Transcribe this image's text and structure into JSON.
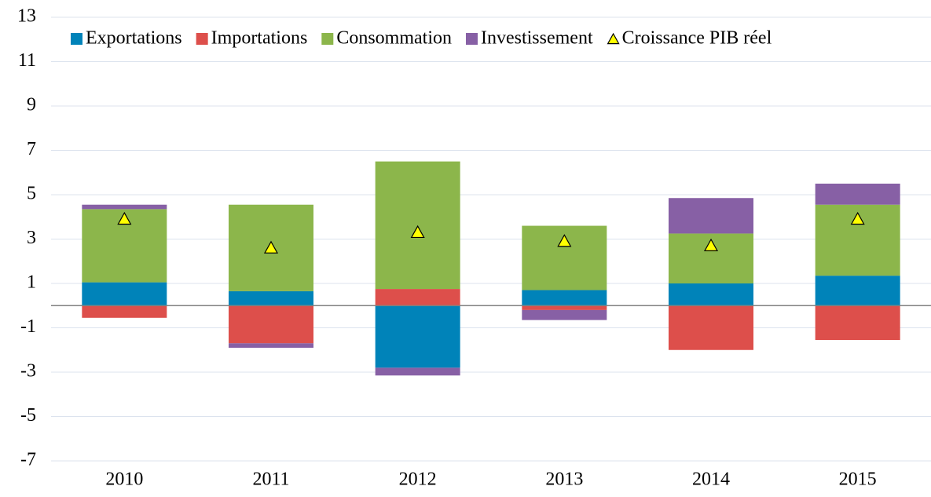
{
  "chart_data": {
    "type": "bar",
    "stacked": true,
    "categories": [
      "2010",
      "2011",
      "2012",
      "2013",
      "2014",
      "2015"
    ],
    "series": [
      {
        "name": "Exportations",
        "color": "#0083b9",
        "values": [
          1.05,
          0.65,
          -2.8,
          0.7,
          1.0,
          1.35
        ]
      },
      {
        "name": "Importations",
        "color": "#dd4f4b",
        "values": [
          -0.55,
          -1.7,
          0.75,
          -0.2,
          -2.0,
          -1.55
        ]
      },
      {
        "name": "Consommation",
        "color": "#8cb64b",
        "values": [
          3.3,
          3.9,
          5.75,
          2.9,
          2.25,
          3.2
        ]
      },
      {
        "name": "Investissement",
        "color": "#8760a5",
        "values": [
          0.2,
          -0.2,
          -0.35,
          -0.45,
          1.6,
          0.95
        ]
      },
      {
        "name": "Croissance PIB réel",
        "type": "scatter",
        "marker": "triangle",
        "color": "#ffff00",
        "values": [
          3.9,
          2.6,
          3.3,
          2.9,
          2.7,
          3.9
        ]
      }
    ],
    "ylim": [
      -7,
      13
    ],
    "yticks": [
      -7,
      -5,
      -3,
      -1,
      1,
      3,
      5,
      7,
      9,
      11,
      13
    ],
    "grid": true,
    "legend": "top"
  }
}
